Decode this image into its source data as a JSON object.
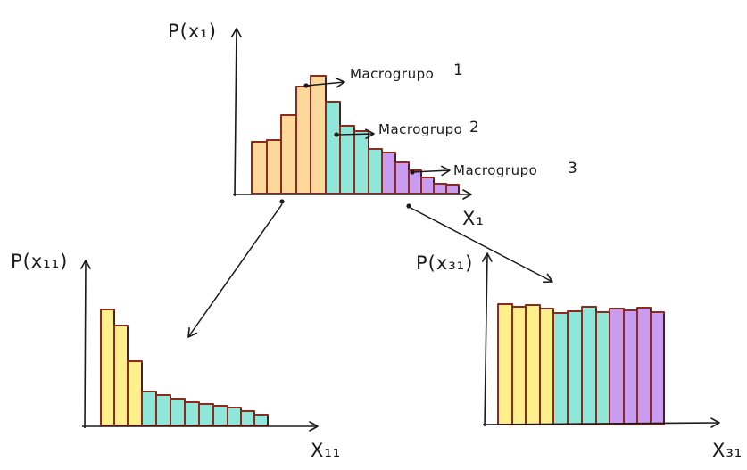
{
  "colors": {
    "macrogroup_1": "#fcd99a",
    "macrogroup_2": "#8fe6d9",
    "macrogroup_3": "#c99cf2",
    "yellow_fill": "#fcef8c",
    "bar_outline": "#8c2a1e",
    "ink": "#1a1a1a"
  },
  "top_plot": {
    "y_label": "P(x₁)",
    "x_label": "X₁",
    "annotations": [
      {
        "label": "Macrogrupo",
        "number": "1"
      },
      {
        "label": "Macrogrupo",
        "number": "2"
      },
      {
        "label": "Macrogrupo",
        "number": "3"
      }
    ]
  },
  "left_plot": {
    "y_label": "P(x₁₁)",
    "x_label": "X₁₁"
  },
  "right_plot": {
    "y_label": "P(x₃₁)",
    "x_label": "X₃₁"
  },
  "chart_data": [
    {
      "type": "bar",
      "title": "",
      "xlabel": "X₁",
      "ylabel": "P(x₁)",
      "values": [
        58,
        60,
        88,
        120,
        132,
        103,
        76,
        70,
        50,
        46,
        35,
        26,
        18,
        11,
        10
      ],
      "groups": [
        1,
        1,
        1,
        1,
        1,
        2,
        2,
        2,
        2,
        3,
        3,
        3,
        3,
        3,
        3
      ],
      "ylim": [
        0,
        150
      ]
    },
    {
      "type": "bar",
      "title": "",
      "xlabel": "X₁₁",
      "ylabel": "P(x₁₁)",
      "values": [
        130,
        112,
        72,
        38,
        34,
        30,
        26,
        24,
        22,
        20,
        16,
        12
      ],
      "groups": [
        1,
        1,
        1,
        2,
        2,
        2,
        2,
        2,
        2,
        2,
        2,
        2
      ],
      "ylim": [
        0,
        150
      ]
    },
    {
      "type": "bar",
      "title": "",
      "xlabel": "X₃₁",
      "ylabel": "P(x₃₁)",
      "values": [
        135,
        132,
        134,
        130,
        125,
        127,
        132,
        126,
        130,
        128,
        131,
        126
      ],
      "groups": [
        1,
        1,
        1,
        1,
        2,
        2,
        2,
        2,
        3,
        3,
        3,
        3
      ],
      "ylim": [
        0,
        150
      ]
    }
  ]
}
